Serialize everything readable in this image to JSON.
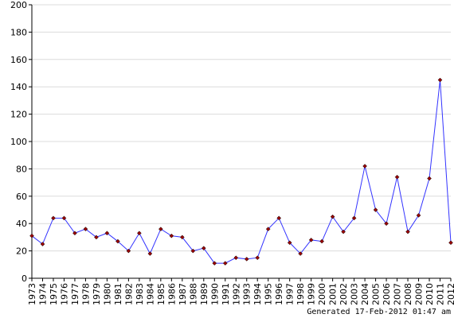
{
  "chart_data": {
    "type": "line",
    "x": [
      "1973",
      "1974",
      "1975",
      "1976",
      "1977",
      "1978",
      "1979",
      "1980",
      "1981",
      "1982",
      "1983",
      "1984",
      "1985",
      "1986",
      "1987",
      "1988",
      "1989",
      "1990",
      "1991",
      "1992",
      "1993",
      "1994",
      "1995",
      "1996",
      "1997",
      "1998",
      "1999",
      "2000",
      "2001",
      "2002",
      "2003",
      "2004",
      "2005",
      "2006",
      "2007",
      "2008",
      "2009",
      "2010",
      "2011",
      "2012"
    ],
    "series": [
      {
        "values": [
          31,
          25,
          44,
          44,
          33,
          36,
          30,
          33,
          27,
          20,
          33,
          18,
          36,
          31,
          30,
          20,
          22,
          11,
          11,
          15,
          14,
          15,
          36,
          44,
          26,
          18,
          28,
          27,
          45,
          34,
          44,
          82,
          50,
          40,
          74,
          34,
          46,
          73,
          145,
          26
        ]
      }
    ],
    "yticks": [
      0,
      20,
      40,
      60,
      80,
      100,
      120,
      140,
      160,
      180,
      200
    ],
    "ylim": [
      0,
      200
    ],
    "grid": true,
    "line_color": "#3333ff",
    "marker_color": "#990000"
  },
  "footer": {
    "generated": "Generated 17-Feb-2012 01:47 am"
  }
}
